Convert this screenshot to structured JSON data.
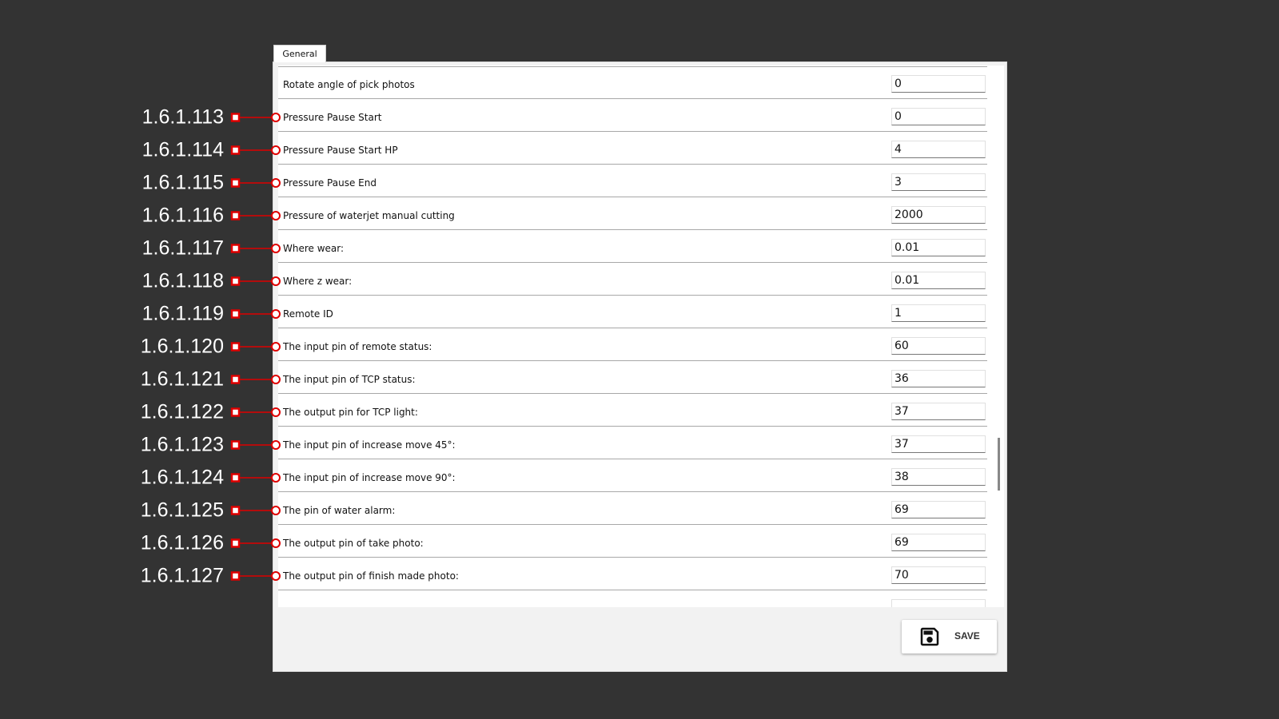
{
  "tab": "General",
  "rows": [
    {
      "label": "Rotate angle of pick photos",
      "value": "0"
    },
    {
      "label": "Pressure Pause Start",
      "value": "0",
      "callout": "1.6.1.113"
    },
    {
      "label": "Pressure Pause Start HP",
      "value": "4",
      "callout": "1.6.1.114"
    },
    {
      "label": "Pressure Pause End",
      "value": "3",
      "callout": "1.6.1.115"
    },
    {
      "label": "Pressure of waterjet manual cutting",
      "value": "2000",
      "callout": "1.6.1.116"
    },
    {
      "label": "Where wear:",
      "value": "0.01",
      "callout": "1.6.1.117"
    },
    {
      "label": "Where z wear:",
      "value": "0.01",
      "callout": "1.6.1.118"
    },
    {
      "label": "Remote ID",
      "value": "1",
      "callout": "1.6.1.119"
    },
    {
      "label": "The input pin of remote status:",
      "value": "60",
      "callout": "1.6.1.120"
    },
    {
      "label": "The input pin of TCP status:",
      "value": "36",
      "callout": "1.6.1.121"
    },
    {
      "label": "The output pin for TCP light:",
      "value": "37",
      "callout": "1.6.1.122"
    },
    {
      "label": "The input pin of increase move 45°:",
      "value": "37",
      "callout": "1.6.1.123"
    },
    {
      "label": "The input pin of increase move 90°:",
      "value": "38",
      "callout": "1.6.1.124"
    },
    {
      "label": "The pin of water alarm:",
      "value": "69",
      "callout": "1.6.1.125"
    },
    {
      "label": "The output pin of take photo:",
      "value": "69",
      "callout": "1.6.1.126"
    },
    {
      "label": "The output pin of finish made photo:",
      "value": "70",
      "callout": "1.6.1.127"
    }
  ],
  "save": "SAVE"
}
